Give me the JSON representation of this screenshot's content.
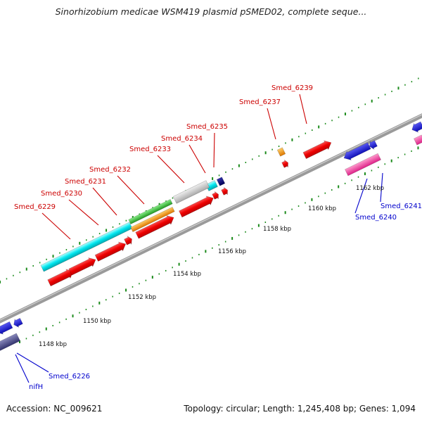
{
  "header": {
    "title": "Sinorhizobium medicae WSM419 plasmid pSMED02, complete seque..."
  },
  "footer": {
    "accession": "Accession: NC_009621",
    "summary": "Topology: circular; Length: 1,245,408 bp; Genes: 1,094"
  },
  "colors": {
    "backbone": "#8a8a8a",
    "tick": "#1a8a1a",
    "label_forward": "#cc0000",
    "label_reverse": "#0000cc"
  },
  "scale": [
    {
      "label": "1148 kbp",
      "pos_kbp": 1148
    },
    {
      "label": "1150 kbp",
      "pos_kbp": 1150
    },
    {
      "label": "1152 kbp",
      "pos_kbp": 1152
    },
    {
      "label": "1154 kbp",
      "pos_kbp": 1154
    },
    {
      "label": "1156 kbp",
      "pos_kbp": 1156
    },
    {
      "label": "1158 kbp",
      "pos_kbp": 1158
    },
    {
      "label": "1160 kbp",
      "pos_kbp": 1160
    },
    {
      "label": "1162 kbp",
      "pos_kbp": 1162
    }
  ],
  "genes_labels": [
    {
      "name": "Smed_6229",
      "strand": "+",
      "color": "#cc0000"
    },
    {
      "name": "Smed_6230",
      "strand": "+",
      "color": "#cc0000"
    },
    {
      "name": "Smed_6231",
      "strand": "+",
      "color": "#cc0000"
    },
    {
      "name": "Smed_6232",
      "strand": "+",
      "color": "#cc0000"
    },
    {
      "name": "Smed_6233",
      "strand": "+",
      "color": "#cc0000"
    },
    {
      "name": "Smed_6234",
      "strand": "+",
      "color": "#cc0000"
    },
    {
      "name": "Smed_6235",
      "strand": "+",
      "color": "#cc0000"
    },
    {
      "name": "Smed_6237",
      "strand": "+",
      "color": "#cc0000"
    },
    {
      "name": "Smed_6239",
      "strand": "+",
      "color": "#cc0000"
    },
    {
      "name": "Smed_6241",
      "strand": "-",
      "color": "#0000cc"
    },
    {
      "name": "Smed_6240",
      "strand": "-",
      "color": "#0000cc"
    },
    {
      "name": "Smed_6226",
      "strand": "-",
      "color": "#0000cc"
    },
    {
      "name": "nifH",
      "strand": "-",
      "color": "#0000cc"
    }
  ],
  "features": {
    "cyan": "#00e5ee",
    "red": "#ee0000",
    "green": "#33bb33",
    "orange": "#ff9900",
    "gray": "#c8c8c8",
    "navy": "#000080",
    "blue": "#0000ee",
    "magenta": "#ff33aa",
    "slate": "#4b4b8c"
  }
}
